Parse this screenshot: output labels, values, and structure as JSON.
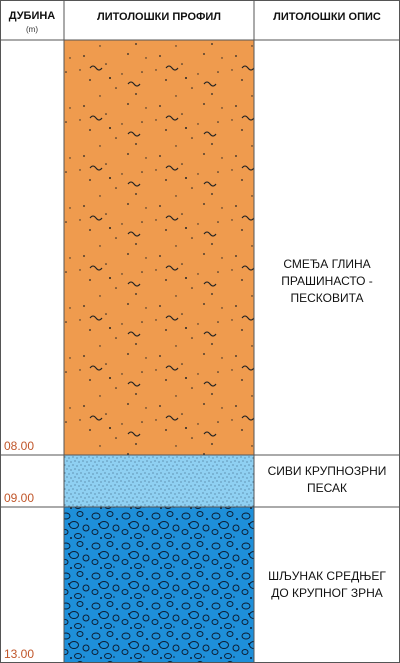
{
  "header": {
    "depth": "ДУБИНА",
    "unit": "(m)",
    "profile": "ЛИТОЛОШКИ ПРОФИЛ",
    "description": "ЛИТОЛОШКИ ОПИС"
  },
  "layers": [
    {
      "bottom": "08.00",
      "description": [
        "СМЕЂА ГЛИНА",
        "ПРАШИНАСТО -",
        "ПЕСКОВИТА"
      ]
    },
    {
      "bottom": "09.00",
      "description": [
        "СИВИ КРУПНОЗРНИ",
        "ПЕСАК"
      ]
    },
    {
      "bottom": "13.00",
      "description": [
        "ШЉУНАК СРЕДЊЕГ",
        "ДО КРУПНОГ ЗРНА"
      ]
    }
  ]
}
